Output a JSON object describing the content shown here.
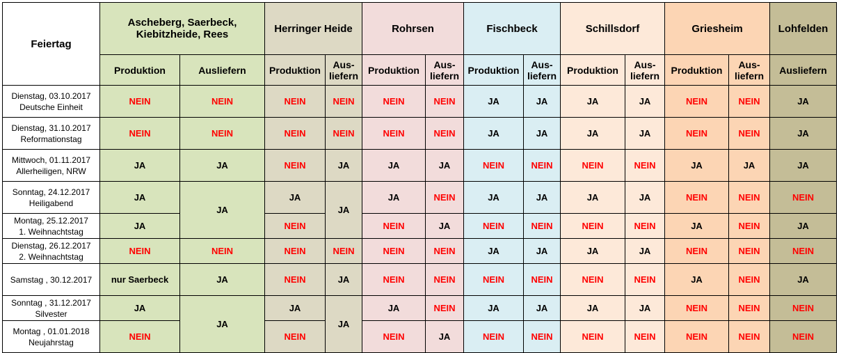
{
  "header": {
    "feiertag": "Feiertag",
    "groups": {
      "ascheberg": "Ascheberg, Saerbeck, Kiebitzheide, Rees",
      "herringer": "Herringer Heide",
      "rohrsen": "Rohrsen",
      "fischbeck": "Fischbeck",
      "schillsdorf": "Schillsdorf",
      "griesheim": "Griesheim",
      "lohfelden": "Lohfelden"
    },
    "sub": {
      "produktion": "Produktion",
      "ausliefern": "Ausliefern",
      "aus_liefern": "Aus-\nliefern"
    }
  },
  "rows": {
    "r1": {
      "day": "Dienstag,  03.10.2017",
      "name": "Deutsche Einheit",
      "a_prod": "NEIN",
      "a_aus": "NEIN",
      "b_prod": "NEIN",
      "b_aus": "NEIN",
      "c_prod": "NEIN",
      "c_aus": "NEIN",
      "d_prod": "JA",
      "d_aus": "JA",
      "e_prod": "JA",
      "e_aus": "JA",
      "f_prod": "NEIN",
      "f_aus": "NEIN",
      "g_aus": "JA"
    },
    "r2": {
      "day": "Dienstag,  31.10.2017",
      "name": "Reformationstag",
      "a_prod": "NEIN",
      "a_aus": "NEIN",
      "b_prod": "NEIN",
      "b_aus": "NEIN",
      "c_prod": "NEIN",
      "c_aus": "NEIN",
      "d_prod": "JA",
      "d_aus": "JA",
      "e_prod": "JA",
      "e_aus": "JA",
      "f_prod": "NEIN",
      "f_aus": "NEIN",
      "g_aus": "JA"
    },
    "r3": {
      "day": "Mittwoch, 01.11.2017",
      "name": "Allerheiligen, NRW",
      "a_prod": "JA",
      "a_aus": "JA",
      "b_prod": "NEIN",
      "b_aus": "JA",
      "c_prod": "JA",
      "c_aus": "JA",
      "d_prod": "NEIN",
      "d_aus": "NEIN",
      "e_prod": "NEIN",
      "e_aus": "NEIN",
      "f_prod": "JA",
      "f_aus": "JA",
      "g_aus": "JA"
    },
    "r4": {
      "day": "Sonntag, 24.12.2017",
      "name": "Heiligabend",
      "a_prod": "JA",
      "a_aus": "JA",
      "b_prod": "JA",
      "b_aus": "JA",
      "c_prod": "JA",
      "c_aus": "NEIN",
      "d_prod": "JA",
      "d_aus": "JA",
      "e_prod": "JA",
      "e_aus": "JA",
      "f_prod": "NEIN",
      "f_aus": "NEIN",
      "g_aus": "NEIN"
    },
    "r5": {
      "day": "Montag, 25.12.2017",
      "name": "1. Weihnachtstag",
      "a_prod": "JA",
      "b_prod": "NEIN",
      "c_prod": "NEIN",
      "c_aus": "JA",
      "d_prod": "NEIN",
      "d_aus": "NEIN",
      "e_prod": "NEIN",
      "e_aus": "NEIN",
      "f_prod": "JA",
      "f_aus": "NEIN",
      "g_aus": "JA"
    },
    "r6": {
      "day": "Dienstag, 26.12.2017",
      "name": "2. Weihnachtstag",
      "a_prod": "NEIN",
      "a_aus": "NEIN",
      "b_prod": "NEIN",
      "b_aus": "NEIN",
      "c_prod": "NEIN",
      "c_aus": "NEIN",
      "d_prod": "JA",
      "d_aus": "JA",
      "e_prod": "JA",
      "e_aus": "JA",
      "f_prod": "NEIN",
      "f_aus": "NEIN",
      "g_aus": "NEIN"
    },
    "r7": {
      "day": "Samstag , 30.12.2017",
      "name": "",
      "a_prod": "nur Saerbeck",
      "a_aus": "JA",
      "b_prod": "NEIN",
      "b_aus": "JA",
      "c_prod": "NEIN",
      "c_aus": "NEIN",
      "d_prod": "NEIN",
      "d_aus": "NEIN",
      "e_prod": "NEIN",
      "e_aus": "NEIN",
      "f_prod": "JA",
      "f_aus": "NEIN",
      "g_aus": "JA"
    },
    "r8": {
      "day": "Sonntag , 31.12.2017",
      "name": "Silvester",
      "a_prod": "JA",
      "a_aus": "JA",
      "b_prod": "JA",
      "b_aus": "JA",
      "c_prod": "JA",
      "c_aus": "NEIN",
      "d_prod": "JA",
      "d_aus": "JA",
      "e_prod": "JA",
      "e_aus": "JA",
      "f_prod": "NEIN",
      "f_aus": "NEIN",
      "g_aus": "NEIN"
    },
    "r9": {
      "day": "Montag , 01.01.2018",
      "name": "Neujahrstag",
      "a_prod": "NEIN",
      "b_prod": "NEIN",
      "c_prod": "NEIN",
      "c_aus": "JA",
      "d_prod": "NEIN",
      "d_aus": "NEIN",
      "e_prod": "NEIN",
      "e_aus": "NEIN",
      "f_prod": "NEIN",
      "f_aus": "NEIN",
      "g_aus": "NEIN"
    }
  },
  "colors": {
    "ascheberg": "#d8e4bc",
    "herringer": "#ddd9c4",
    "rohrsen": "#f2dcdb",
    "fischbeck": "#daeef3",
    "schillsdorf": "#fde9d9",
    "griesheim": "#fcd5b4",
    "lohfelden": "#c4bd97",
    "nein_red": "#ff0000"
  }
}
